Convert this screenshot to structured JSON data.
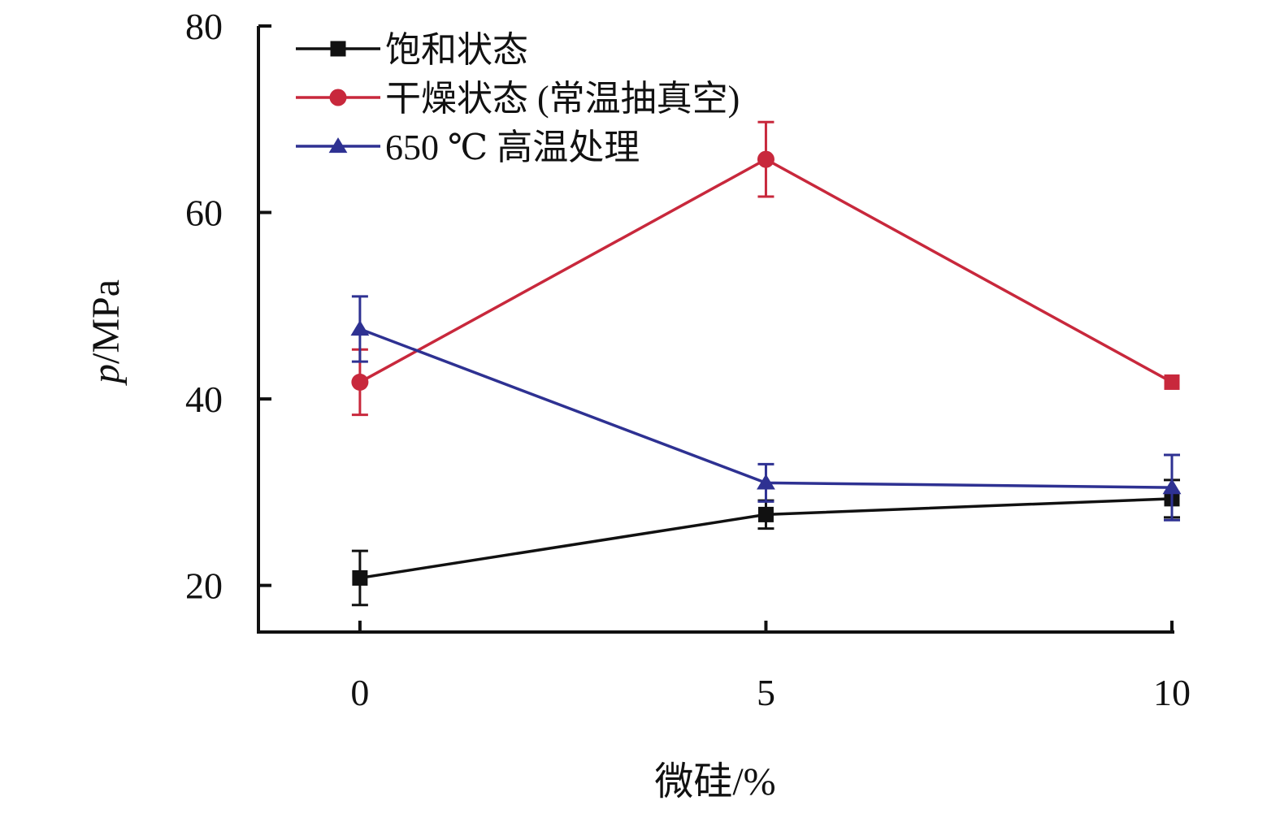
{
  "chart_data": {
    "type": "line",
    "title": "",
    "xlabel": "微硅/%",
    "ylabel_italic": "p",
    "ylabel_rest": "/MPa",
    "x": [
      0,
      5,
      10
    ],
    "x_ticks": [
      "0",
      "5",
      "10"
    ],
    "y_ticks": [
      "20",
      "40",
      "60",
      "80"
    ],
    "xlim": [
      -1.25,
      10
    ],
    "ylim": [
      15,
      80
    ],
    "grid": false,
    "legend_position": "top-left",
    "series": [
      {
        "name": "饱和状态",
        "color": "#111111",
        "marker": "square",
        "values": [
          20.8,
          27.6,
          29.3
        ],
        "errors": [
          2.9,
          1.5,
          2.0
        ]
      },
      {
        "name": "干燥状态 (常温抽真空)",
        "color": "#c8283c",
        "marker": "circle",
        "values": [
          41.8,
          65.7,
          41.8
        ],
        "errors": [
          3.5,
          4.0,
          0.0
        ]
      },
      {
        "name": "650 ℃ 高温处理",
        "color": "#2e3192",
        "marker": "triangle",
        "values": [
          47.5,
          31.0,
          30.5
        ],
        "errors": [
          3.5,
          2.0,
          3.5
        ]
      }
    ]
  }
}
